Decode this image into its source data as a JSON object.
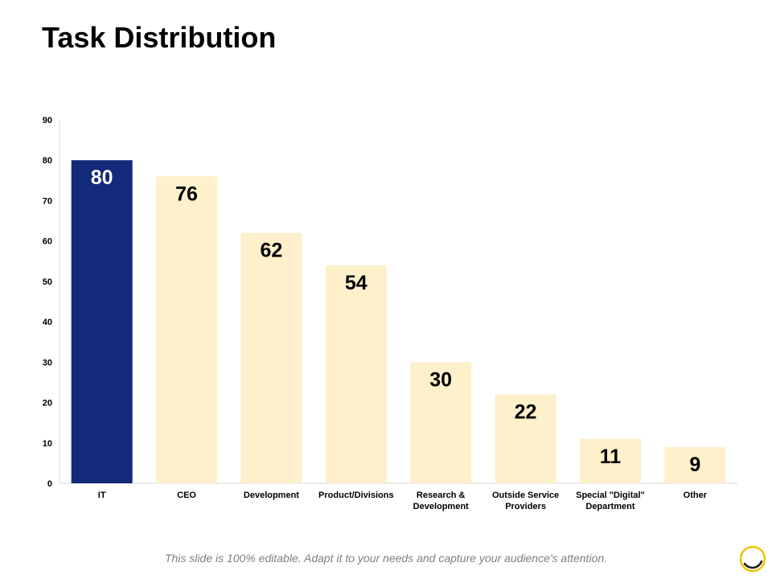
{
  "slide": {
    "title": "Task Distribution",
    "footer": "This slide is 100% editable. Adapt it to your needs and capture your audience's attention."
  },
  "colors": {
    "highlight": "#13297A",
    "bar": "#FEF0CB",
    "axis": "#D9D9D9",
    "label_on_highlight": "#FFFFFF",
    "label": "#000000",
    "logo_ring": "#F2C100"
  },
  "icons": {
    "logo": "circle-logo-icon"
  },
  "chart_data": {
    "type": "bar",
    "categories": [
      "IT",
      "CEO",
      "Development",
      "Product/Divisions",
      "Research & Development",
      "Outside Service Providers",
      "Special \"Digital\" Department",
      "Other"
    ],
    "category_lines": [
      [
        "IT"
      ],
      [
        "CEO"
      ],
      [
        "Development"
      ],
      [
        "Product/Divisions"
      ],
      [
        "Research &",
        "Development"
      ],
      [
        "Outside Service",
        "Providers"
      ],
      [
        "Special \"Digital\"",
        "Department"
      ],
      [
        "Other"
      ]
    ],
    "values": [
      80,
      76,
      62,
      54,
      30,
      22,
      11,
      9
    ],
    "highlight_index": 0,
    "ylim": [
      0,
      90
    ],
    "yticks": [
      0,
      10,
      20,
      30,
      40,
      50,
      60,
      70,
      80,
      90
    ],
    "title": "",
    "xlabel": "",
    "ylabel": "",
    "grid": false,
    "legend": "none",
    "data_labels": true
  }
}
